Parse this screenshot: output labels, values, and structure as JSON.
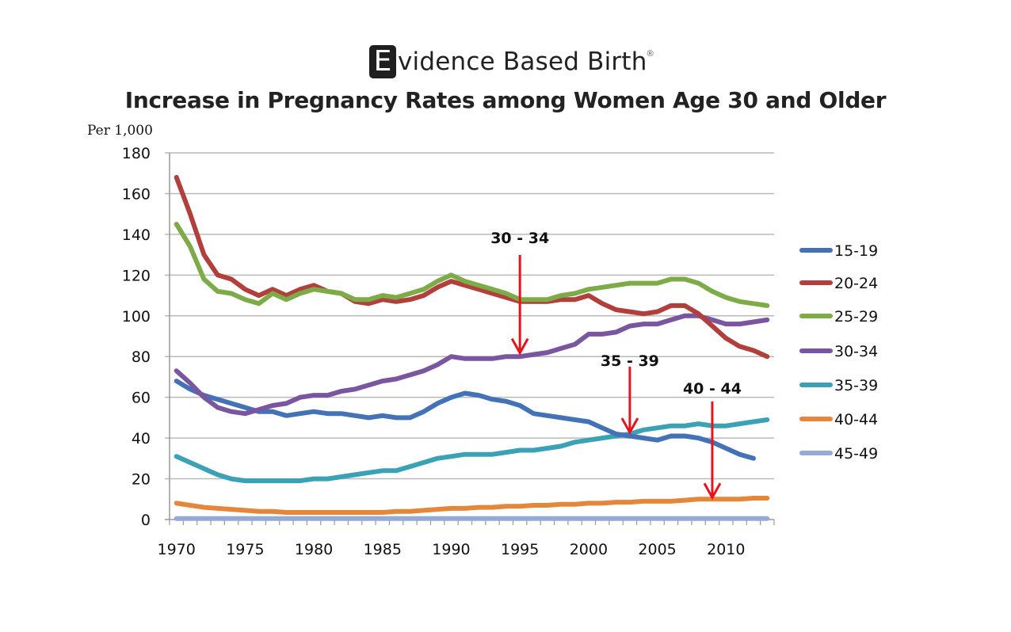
{
  "logo": {
    "letter": "E",
    "text": "vidence Based Birth",
    "reg": "®"
  },
  "chart_data": {
    "type": "line",
    "title": "Increase in Pregnancy Rates among Women Age 30 and Older",
    "ylabel": "Per 1,000",
    "xlabel": "",
    "ylim": [
      0,
      180
    ],
    "yticks": [
      0,
      20,
      40,
      60,
      80,
      100,
      120,
      140,
      160,
      180
    ],
    "xticks": [
      1970,
      1975,
      1980,
      1985,
      1990,
      1995,
      2000,
      2005,
      2010
    ],
    "grid": true,
    "legend": "right",
    "x": [
      1970,
      1971,
      1972,
      1973,
      1974,
      1975,
      1976,
      1977,
      1978,
      1979,
      1980,
      1981,
      1982,
      1983,
      1984,
      1985,
      1986,
      1987,
      1988,
      1989,
      1990,
      1991,
      1992,
      1993,
      1994,
      1995,
      1996,
      1997,
      1998,
      1999,
      2000,
      2001,
      2002,
      2003,
      2004,
      2005,
      2006,
      2007,
      2008,
      2009,
      2010,
      2011,
      2012,
      2013
    ],
    "series": [
      {
        "name": "15-19",
        "color": "#4472b6",
        "values": [
          68,
          64,
          61,
          59,
          57,
          55,
          53,
          53,
          51,
          52,
          53,
          52,
          52,
          51,
          50,
          51,
          50,
          50,
          53,
          57,
          60,
          62,
          61,
          59,
          58,
          56,
          52,
          51,
          50,
          49,
          48,
          45,
          42,
          41,
          40,
          39,
          41,
          41,
          40,
          38,
          35,
          32,
          30,
          null
        ]
      },
      {
        "name": "20-24",
        "color": "#b13f3c",
        "values": [
          168,
          150,
          130,
          120,
          118,
          113,
          110,
          113,
          110,
          113,
          115,
          112,
          111,
          107,
          106,
          108,
          107,
          108,
          110,
          114,
          117,
          115,
          113,
          111,
          109,
          107,
          107,
          107,
          108,
          108,
          110,
          106,
          103,
          102,
          101,
          102,
          105,
          105,
          101,
          95,
          89,
          85,
          83,
          80
        ]
      },
      {
        "name": "25-29",
        "color": "#7cab48",
        "values": [
          145,
          134,
          118,
          112,
          111,
          108,
          106,
          111,
          108,
          111,
          113,
          112,
          111,
          108,
          108,
          110,
          109,
          111,
          113,
          117,
          120,
          117,
          115,
          113,
          111,
          108,
          108,
          108,
          110,
          111,
          113,
          114,
          115,
          116,
          116,
          116,
          118,
          118,
          116,
          112,
          109,
          107,
          106,
          105
        ]
      },
      {
        "name": "30-34",
        "color": "#7a56a0",
        "values": [
          73,
          67,
          60,
          55,
          53,
          52,
          54,
          56,
          57,
          60,
          61,
          61,
          63,
          64,
          66,
          68,
          69,
          71,
          73,
          76,
          80,
          79,
          79,
          79,
          80,
          80,
          81,
          82,
          84,
          86,
          91,
          91,
          92,
          95,
          96,
          96,
          98,
          100,
          100,
          98,
          96,
          96,
          97,
          98
        ]
      },
      {
        "name": "35-39",
        "color": "#3ba2b6",
        "values": [
          31,
          28,
          25,
          22,
          20,
          19,
          19,
          19,
          19,
          19,
          20,
          20,
          21,
          22,
          23,
          24,
          24,
          26,
          28,
          30,
          31,
          32,
          32,
          32,
          33,
          34,
          34,
          35,
          36,
          38,
          39,
          40,
          41,
          42,
          44,
          45,
          46,
          46,
          47,
          46,
          46,
          47,
          48,
          49
        ]
      },
      {
        "name": "40-44",
        "color": "#e5873a",
        "values": [
          8,
          7,
          6,
          5.5,
          5,
          4.5,
          4,
          4,
          3.5,
          3.5,
          3.5,
          3.5,
          3.5,
          3.5,
          3.5,
          3.5,
          4,
          4,
          4.5,
          5,
          5.5,
          5.5,
          6,
          6,
          6.5,
          6.5,
          7,
          7,
          7.5,
          7.5,
          8,
          8,
          8.5,
          8.5,
          9,
          9,
          9,
          9.5,
          10,
          10,
          10,
          10,
          10.5,
          10.5
        ]
      },
      {
        "name": "45-49",
        "color": "#95abd6",
        "values": [
          0.5,
          0.5,
          0.5,
          0.5,
          0.5,
          0.5,
          0.5,
          0.5,
          0.5,
          0.5,
          0.5,
          0.5,
          0.5,
          0.5,
          0.5,
          0.5,
          0.5,
          0.5,
          0.5,
          0.5,
          0.5,
          0.5,
          0.5,
          0.5,
          0.5,
          0.5,
          0.5,
          0.5,
          0.5,
          0.5,
          0.5,
          0.5,
          0.5,
          0.5,
          0.5,
          0.5,
          0.5,
          0.5,
          0.5,
          0.5,
          0.5,
          0.5,
          0.5,
          0.5
        ]
      }
    ],
    "annotations": [
      {
        "text": "30 - 34",
        "year": 1995,
        "value": 81,
        "color": "#e8141b"
      },
      {
        "text": "35 - 39",
        "year": 2003,
        "value": 42,
        "color": "#e8141b"
      },
      {
        "text": "40 - 44",
        "year": 2009,
        "value": 10,
        "color": "#e8141b"
      }
    ]
  }
}
